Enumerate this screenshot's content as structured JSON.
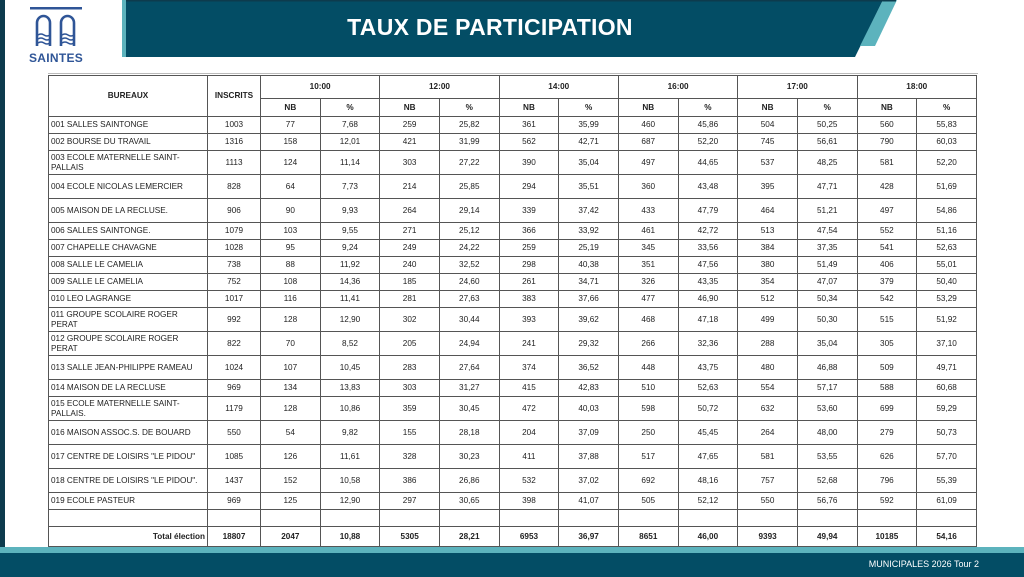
{
  "logo": {
    "text": "SAINTES"
  },
  "header": {
    "title": "TAUX DE PARTICIPATION"
  },
  "colors": {
    "banner": "#034d65",
    "accent": "#5cb3bd",
    "logo": "#2f5597"
  },
  "table": {
    "col_bureaux": "BUREAUX",
    "col_inscrits": "INSCRITS",
    "times": [
      "10:00",
      "12:00",
      "14:00",
      "16:00",
      "17:00",
      "18:00"
    ],
    "sub_nb": "NB",
    "sub_pct": "%",
    "rows": [
      {
        "name": "001 SALLES SAINTONGE",
        "inscrits": "1003",
        "vals": [
          "77",
          "7,68",
          "259",
          "25,82",
          "361",
          "35,99",
          "460",
          "45,86",
          "504",
          "50,25",
          "560",
          "55,83"
        ]
      },
      {
        "name": "002 BOURSE DU TRAVAIL",
        "inscrits": "1316",
        "vals": [
          "158",
          "12,01",
          "421",
          "31,99",
          "562",
          "42,71",
          "687",
          "52,20",
          "745",
          "56,61",
          "790",
          "60,03"
        ]
      },
      {
        "name": "003 ECOLE MATERNELLE SAINT-PALLAIS",
        "inscrits": "1113",
        "vals": [
          "124",
          "11,14",
          "303",
          "27,22",
          "390",
          "35,04",
          "497",
          "44,65",
          "537",
          "48,25",
          "581",
          "52,20"
        ]
      },
      {
        "name": "004 ECOLE NICOLAS LEMERCIER",
        "inscrits": "828",
        "vals": [
          "64",
          "7,73",
          "214",
          "25,85",
          "294",
          "35,51",
          "360",
          "43,48",
          "395",
          "47,71",
          "428",
          "51,69"
        ]
      },
      {
        "name": "005 MAISON DE LA RECLUSE.",
        "inscrits": "906",
        "vals": [
          "90",
          "9,93",
          "264",
          "29,14",
          "339",
          "37,42",
          "433",
          "47,79",
          "464",
          "51,21",
          "497",
          "54,86"
        ]
      },
      {
        "name": "006 SALLES SAINTONGE.",
        "inscrits": "1079",
        "vals": [
          "103",
          "9,55",
          "271",
          "25,12",
          "366",
          "33,92",
          "461",
          "42,72",
          "513",
          "47,54",
          "552",
          "51,16"
        ]
      },
      {
        "name": "007 CHAPELLE CHAVAGNE",
        "inscrits": "1028",
        "vals": [
          "95",
          "9,24",
          "249",
          "24,22",
          "259",
          "25,19",
          "345",
          "33,56",
          "384",
          "37,35",
          "541",
          "52,63"
        ]
      },
      {
        "name": "008 SALLE LE CAMELIA",
        "inscrits": "738",
        "vals": [
          "88",
          "11,92",
          "240",
          "32,52",
          "298",
          "40,38",
          "351",
          "47,56",
          "380",
          "51,49",
          "406",
          "55,01"
        ]
      },
      {
        "name": "009 SALLE LE CAMELIA",
        "inscrits": "752",
        "vals": [
          "108",
          "14,36",
          "185",
          "24,60",
          "261",
          "34,71",
          "326",
          "43,35",
          "354",
          "47,07",
          "379",
          "50,40"
        ]
      },
      {
        "name": "010 LEO LAGRANGE",
        "inscrits": "1017",
        "vals": [
          "116",
          "11,41",
          "281",
          "27,63",
          "383",
          "37,66",
          "477",
          "46,90",
          "512",
          "50,34",
          "542",
          "53,29"
        ]
      },
      {
        "name": "011 GROUPE SCOLAIRE ROGER PERAT",
        "inscrits": "992",
        "vals": [
          "128",
          "12,90",
          "302",
          "30,44",
          "393",
          "39,62",
          "468",
          "47,18",
          "499",
          "50,30",
          "515",
          "51,92"
        ]
      },
      {
        "name": "012 GROUPE SCOLAIRE ROGER PERAT",
        "inscrits": "822",
        "vals": [
          "70",
          "8,52",
          "205",
          "24,94",
          "241",
          "29,32",
          "266",
          "32,36",
          "288",
          "35,04",
          "305",
          "37,10"
        ]
      },
      {
        "name": "013 SALLE JEAN-PHILIPPE RAMEAU",
        "inscrits": "1024",
        "vals": [
          "107",
          "10,45",
          "283",
          "27,64",
          "374",
          "36,52",
          "448",
          "43,75",
          "480",
          "46,88",
          "509",
          "49,71"
        ]
      },
      {
        "name": "014 MAISON DE LA RECLUSE",
        "inscrits": "969",
        "vals": [
          "134",
          "13,83",
          "303",
          "31,27",
          "415",
          "42,83",
          "510",
          "52,63",
          "554",
          "57,17",
          "588",
          "60,68"
        ]
      },
      {
        "name": "015 ECOLE MATERNELLE SAINT-PALLAIS.",
        "inscrits": "1179",
        "vals": [
          "128",
          "10,86",
          "359",
          "30,45",
          "472",
          "40,03",
          "598",
          "50,72",
          "632",
          "53,60",
          "699",
          "59,29"
        ]
      },
      {
        "name": "016 MAISON ASSOC.S. DE BOUARD",
        "inscrits": "550",
        "vals": [
          "54",
          "9,82",
          "155",
          "28,18",
          "204",
          "37,09",
          "250",
          "45,45",
          "264",
          "48,00",
          "279",
          "50,73"
        ]
      },
      {
        "name": "017 CENTRE DE LOISIRS \"LE PIDOU\"",
        "inscrits": "1085",
        "vals": [
          "126",
          "11,61",
          "328",
          "30,23",
          "411",
          "37,88",
          "517",
          "47,65",
          "581",
          "53,55",
          "626",
          "57,70"
        ]
      },
      {
        "name": "018 CENTRE DE LOISIRS \"LE PIDOU\".",
        "inscrits": "1437",
        "vals": [
          "152",
          "10,58",
          "386",
          "26,86",
          "532",
          "37,02",
          "692",
          "48,16",
          "757",
          "52,68",
          "796",
          "55,39"
        ]
      },
      {
        "name": "019 ECOLE PASTEUR",
        "inscrits": "969",
        "vals": [
          "125",
          "12,90",
          "297",
          "30,65",
          "398",
          "41,07",
          "505",
          "52,12",
          "550",
          "56,76",
          "592",
          "61,09"
        ]
      }
    ],
    "total": {
      "label": "Total élection",
      "inscrits": "18807",
      "vals": [
        "2047",
        "10,88",
        "5305",
        "28,21",
        "6953",
        "36,97",
        "8651",
        "46,00",
        "9393",
        "49,94",
        "10185",
        "54,16"
      ]
    }
  },
  "footer": {
    "text": "MUNICIPALES 2026 Tour 2"
  }
}
